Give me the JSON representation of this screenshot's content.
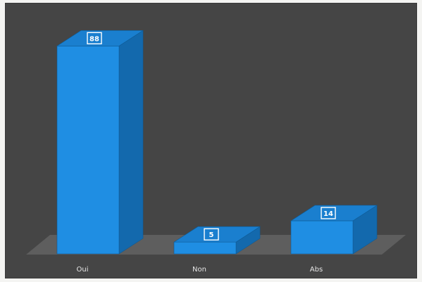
{
  "chart_data": {
    "type": "bar",
    "categories": [
      "Oui",
      "Non",
      "Abs"
    ],
    "values": [
      88,
      5,
      14
    ],
    "title": "",
    "xlabel": "",
    "ylabel": "",
    "grid": false,
    "legend": "none",
    "colors": {
      "bar_front": "#1f8ee3",
      "bar_top": "#1a7fcf",
      "bar_side": "#1369ad",
      "background": "#454545",
      "floor": "#5e5e5e"
    }
  }
}
